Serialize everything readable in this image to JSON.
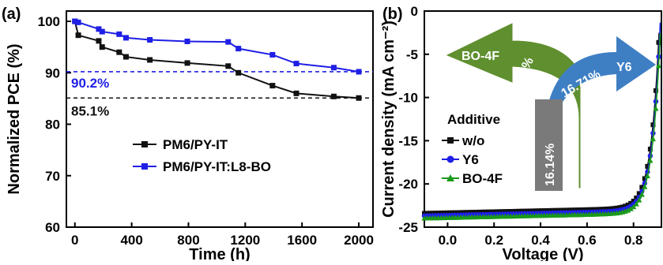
{
  "colors": {
    "black": "#111111",
    "blue": "#1f1fe6",
    "green": "#1a9a1a",
    "arrow_green": "#5f8f2f",
    "arrow_blue": "#3e7fc4",
    "arrow_gray": "#7a7a7a"
  },
  "chart_data": [
    {
      "type": "line",
      "panel_label": "(a)",
      "xlabel": "Time (h)",
      "ylabel": "Normalized PCE (%)",
      "xlim": [
        -60,
        2100
      ],
      "ylim": [
        60,
        102
      ],
      "x_ticks": [
        "0",
        "400",
        "800",
        "1200",
        "1600",
        "2000"
      ],
      "y_ticks": [
        "60",
        "70",
        "80",
        "90",
        "100"
      ],
      "legend_position": "center",
      "series": [
        {
          "name": "PM6/PY-IT",
          "color": "#111111",
          "x": [
            0,
            24,
            168,
            192,
            312,
            360,
            528,
            792,
            1080,
            1152,
            1392,
            1560,
            1824,
            2000
          ],
          "y": [
            100,
            97.3,
            96.2,
            95.0,
            94.0,
            93.1,
            92.5,
            91.9,
            91.3,
            90.0,
            87.5,
            86.0,
            85.4,
            85.1
          ]
        },
        {
          "name": "PM6/PY-IT:L8-BO",
          "color": "#1f1fe6",
          "x": [
            0,
            24,
            168,
            192,
            312,
            360,
            528,
            792,
            1080,
            1152,
            1392,
            1560,
            1824,
            2000
          ],
          "y": [
            100,
            99.8,
            98.5,
            98.0,
            97.5,
            96.8,
            96.4,
            96.1,
            96.0,
            94.7,
            93.5,
            91.8,
            91.0,
            90.2
          ]
        }
      ],
      "reference_lines": [
        {
          "y": 90.2,
          "label": "90.2%",
          "color": "#1f1fe6"
        },
        {
          "y": 85.1,
          "label": "85.1%",
          "color": "#111111"
        }
      ]
    },
    {
      "type": "line",
      "panel_label": "(b)",
      "xlabel": "Voltage (V)",
      "ylabel": "Current density (mA cm⁻²)",
      "xlim": [
        -0.1,
        0.92
      ],
      "ylim": [
        -25,
        0
      ],
      "x_ticks": [
        "0.0",
        "0.2",
        "0.4",
        "0.6",
        "0.8"
      ],
      "y_ticks": [
        "0",
        "-5",
        "-10",
        "-15",
        "-20",
        "-25"
      ],
      "legend_title": "Additive",
      "legend_position": "center-left",
      "series": [
        {
          "name": "w/o",
          "color": "#111111",
          "jsc": -23.4,
          "voc": 0.915
        },
        {
          "name": "Y6",
          "color": "#1f1fe6",
          "jsc": -23.7,
          "voc": 0.918
        },
        {
          "name": "BO-4F",
          "color": "#1a9a1a",
          "jsc": -24.0,
          "voc": 0.92
        }
      ],
      "annotations": {
        "left_arrow_label": "BO-4F",
        "left_arrow_value": "16.79%",
        "right_arrow_label": "Y6",
        "right_arrow_value": "16.71%",
        "base_value": "16.14%"
      }
    }
  ]
}
